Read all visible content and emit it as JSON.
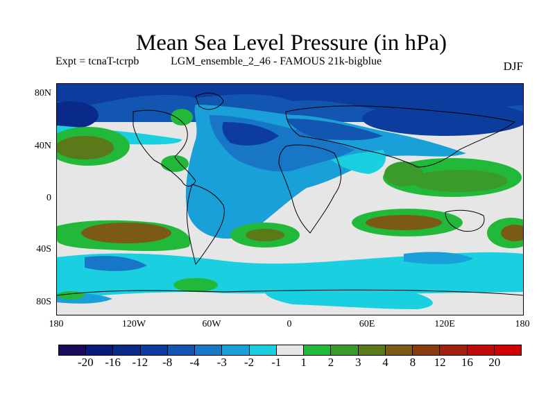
{
  "title": "Mean Sea Level Pressure (in hPa)",
  "expt_label": "Expt = tcnaT-tcrpb",
  "run_label": "LGM_ensemble_2_46 - FAMOUS 21k-bigblue",
  "season": "DJF",
  "lat_ticks": [
    "80N",
    "40N",
    "0",
    "40S",
    "80S"
  ],
  "lon_ticks": [
    "180",
    "120W",
    "60W",
    "0",
    "60E",
    "120E",
    "180"
  ],
  "colorbar": {
    "labels": [
      "-20",
      "-16",
      "-12",
      "-8",
      "-4",
      "-3",
      "-2",
      "-1",
      "1",
      "2",
      "3",
      "4",
      "8",
      "12",
      "16",
      "20"
    ],
    "colors": [
      "#1a0a5c",
      "#0a1a78",
      "#0a2a8a",
      "#0b3c9e",
      "#1256b2",
      "#1777c6",
      "#1aa0d8",
      "#19cfe0",
      "#e6e6e6",
      "#22b83a",
      "#3a9a2a",
      "#5a7a1a",
      "#7a5a14",
      "#8a3c10",
      "#a02010",
      "#c00a0a",
      "#d00000"
    ]
  }
}
